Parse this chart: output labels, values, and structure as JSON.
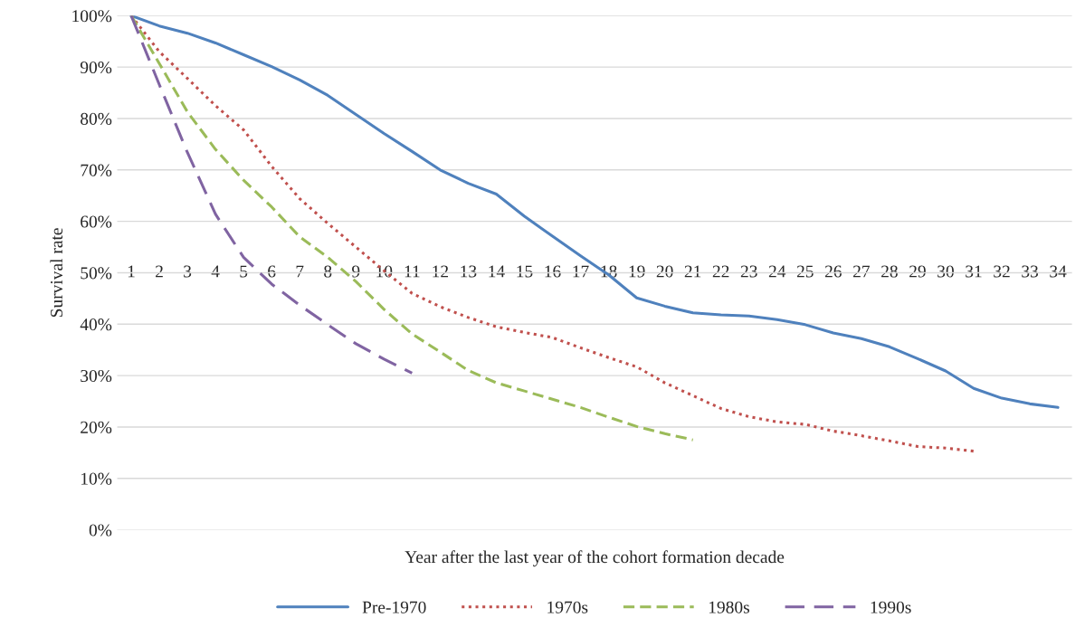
{
  "chart_data": {
    "type": "line",
    "xlabel": "Year after the last year of the cohort formation decade",
    "ylabel": "Survival rate",
    "categories": [
      "1",
      "2",
      "3",
      "4",
      "5",
      "6",
      "7",
      "8",
      "9",
      "10",
      "11",
      "12",
      "13",
      "14",
      "15",
      "16",
      "17",
      "18",
      "19",
      "20",
      "21",
      "22",
      "23",
      "24",
      "25",
      "26",
      "27",
      "28",
      "29",
      "30",
      "31",
      "32",
      "33",
      "34"
    ],
    "ylim": [
      0,
      100
    ],
    "yticks": [
      {
        "value": 0,
        "label": "0%"
      },
      {
        "value": 10,
        "label": "10%"
      },
      {
        "value": 20,
        "label": "20%"
      },
      {
        "value": 30,
        "label": "30%"
      },
      {
        "value": 40,
        "label": "40%"
      },
      {
        "value": 50,
        "label": "50%"
      },
      {
        "value": 60,
        "label": "60%"
      },
      {
        "value": 70,
        "label": "70%"
      },
      {
        "value": 80,
        "label": "80%"
      },
      {
        "value": 90,
        "label": "90%"
      },
      {
        "value": 100,
        "label": "100%"
      }
    ],
    "grid": "y",
    "legend": "bottom",
    "marker": "none",
    "series": [
      {
        "name": "Pre-1970",
        "color": "#4f81bd",
        "line_style": "solid",
        "values": [
          100,
          98,
          96.6,
          94.7,
          92.4,
          90.1,
          87.5,
          84.5,
          80.8,
          77.1,
          73.6,
          70,
          67.4,
          65.3,
          61,
          57.1,
          53.3,
          49.6,
          45.1,
          43.5,
          42.2,
          41.8,
          41.6,
          40.9,
          39.9,
          38.3,
          37.2,
          35.6,
          33.3,
          30.9,
          27.5,
          25.6,
          24.5,
          23.8
        ]
      },
      {
        "name": "1970s",
        "color": "#c0504d",
        "line_style": "dotted",
        "values": [
          100,
          93,
          87.8,
          82.5,
          77.8,
          70.7,
          64.4,
          59.6,
          55,
          50.4,
          46,
          43.4,
          41.3,
          39.5,
          38.4,
          37.4,
          35.4,
          33.5,
          31.7,
          28.6,
          26.1,
          23.6,
          22,
          21,
          20.5,
          19.2,
          18.3,
          17.3,
          16.2,
          15.9,
          15.3,
          null,
          null,
          null
        ]
      },
      {
        "name": "1980s",
        "color": "#9bbb59",
        "line_style": "dashed",
        "values": [
          100,
          90.7,
          81.3,
          74,
          68,
          62.8,
          57,
          53,
          48.3,
          42.9,
          38.1,
          34.6,
          31,
          28.6,
          27,
          25.4,
          23.8,
          21.9,
          20.1,
          18.7,
          17.5,
          null,
          null,
          null,
          null,
          null,
          null,
          null,
          null,
          null,
          null,
          null,
          null,
          null
        ]
      },
      {
        "name": "1990s",
        "color": "#8064a2",
        "line_style": "longdash",
        "values": [
          100,
          86.6,
          73.4,
          61.4,
          53,
          47.8,
          43.7,
          39.9,
          36.2,
          33.2,
          30.5,
          null,
          null,
          null,
          null,
          null,
          null,
          null,
          null,
          null,
          null,
          null,
          null,
          null,
          null,
          null,
          null,
          null,
          null,
          null,
          null,
          null,
          null,
          null
        ]
      }
    ]
  }
}
